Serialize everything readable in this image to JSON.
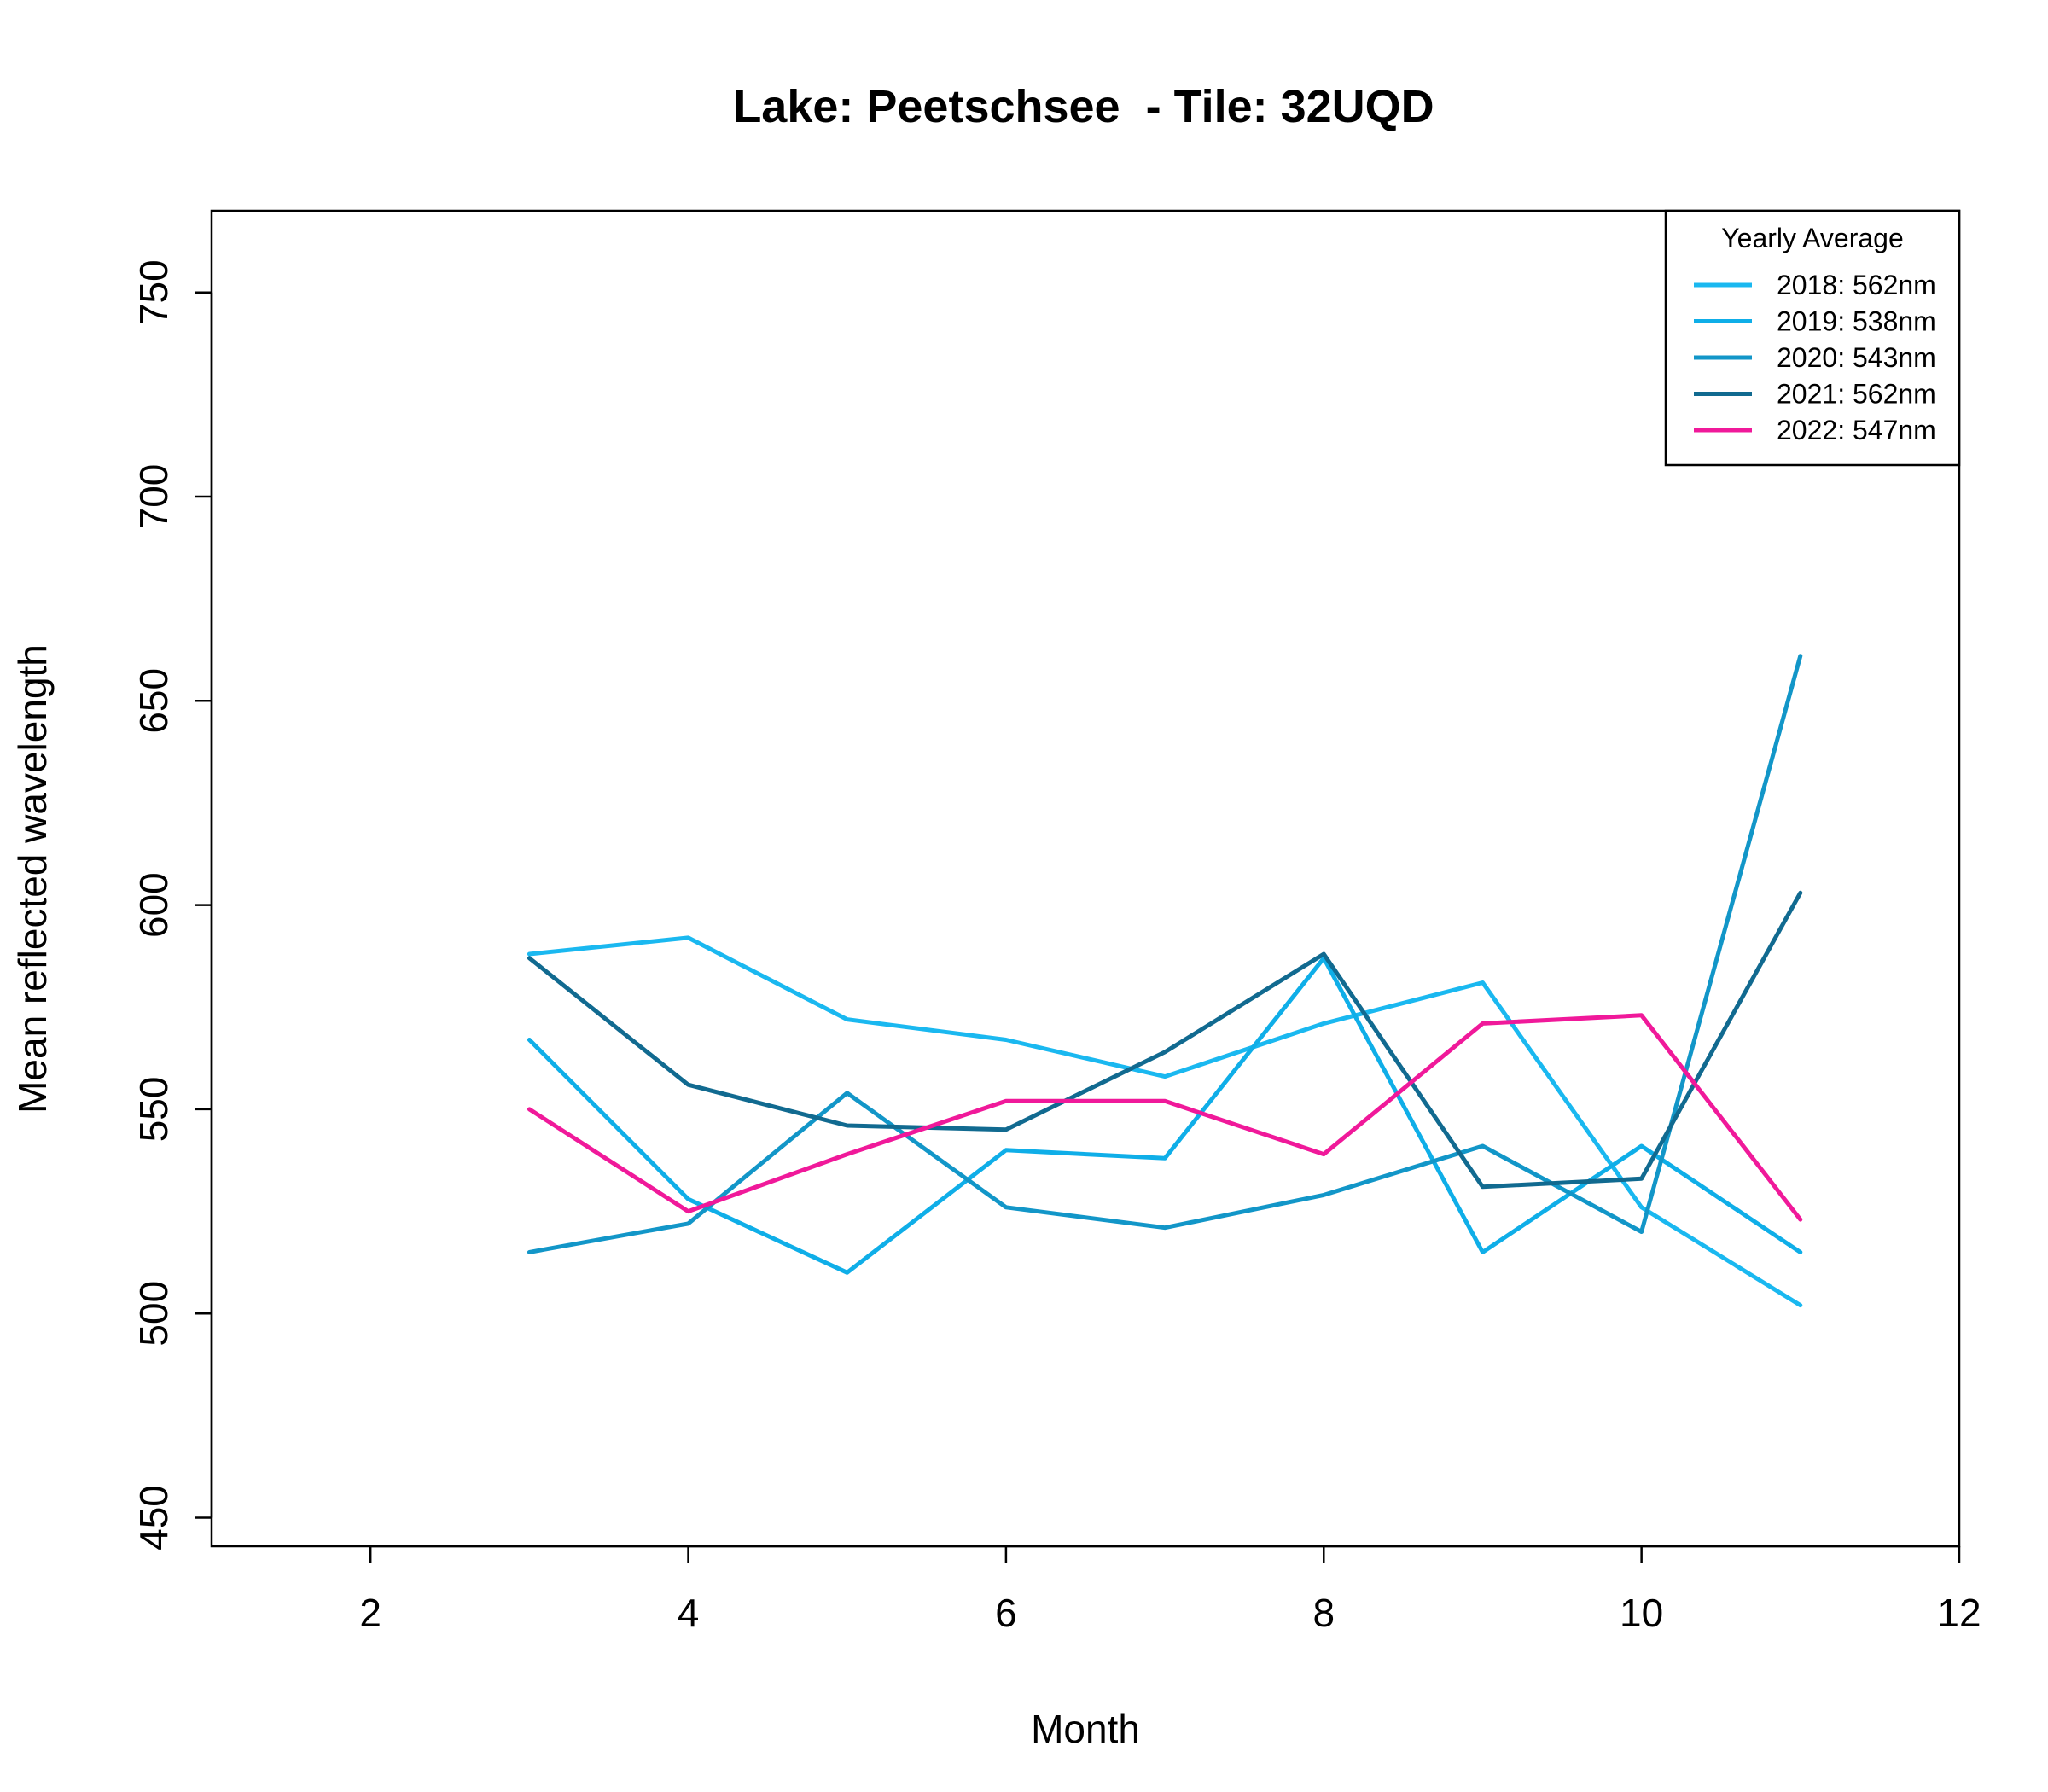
{
  "chart_data": {
    "type": "line",
    "title": "Lake: Peetschsee  - Tile: 32UQD",
    "xlabel": "Month",
    "ylabel": "Mean reflected wavelength",
    "xlim": [
      1,
      12
    ],
    "ylim": [
      443,
      770
    ],
    "xticks": [
      2,
      4,
      6,
      8,
      10,
      12
    ],
    "yticks": [
      450,
      500,
      550,
      600,
      650,
      700,
      750
    ],
    "grid": false,
    "legend": {
      "title": "Yearly Average",
      "position": "top-right",
      "entries": [
        "2018: 562nm",
        "2019: 538nm",
        "2020: 543nm",
        "2021: 562nm",
        "2022: 547nm"
      ]
    },
    "series": [
      {
        "name": "2018: 562nm",
        "color": "#1AB8F0",
        "x": [
          3,
          4,
          5,
          6,
          7,
          8,
          9,
          10,
          11
        ],
        "y": [
          588,
          592,
          572,
          567,
          558,
          571,
          581,
          526,
          502
        ]
      },
      {
        "name": "2019: 538nm",
        "color": "#0FAEE8",
        "x": [
          3,
          4,
          5,
          6,
          7,
          8,
          9,
          10,
          11
        ],
        "y": [
          567,
          528,
          510,
          540,
          538,
          587,
          515,
          541,
          515
        ]
      },
      {
        "name": "2020: 543nm",
        "color": "#1296C8",
        "x": [
          3,
          4,
          5,
          6,
          7,
          8,
          9,
          10,
          11
        ],
        "y": [
          515,
          522,
          554,
          526,
          521,
          529,
          541,
          520,
          661
        ]
      },
      {
        "name": "2021: 562nm",
        "color": "#116A90",
        "x": [
          3,
          4,
          5,
          6,
          7,
          8,
          9,
          10,
          11
        ],
        "y": [
          587,
          556,
          546,
          545,
          564,
          588,
          531,
          533,
          603
        ]
      },
      {
        "name": "2022: 547nm",
        "color": "#F0199A",
        "x": [
          3,
          4,
          5,
          6,
          7,
          8,
          9,
          10,
          11
        ],
        "y": [
          550,
          525,
          539,
          552,
          552,
          539,
          571,
          573,
          523
        ]
      }
    ]
  }
}
